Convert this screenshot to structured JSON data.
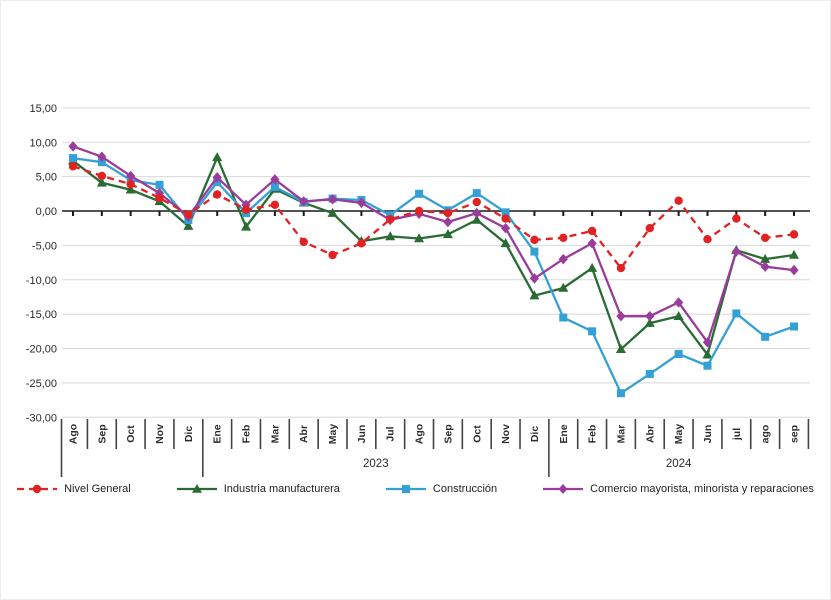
{
  "chart_data": {
    "type": "line",
    "title": "",
    "xlabel": "",
    "ylabel": "",
    "grid": true,
    "legend_position": "bottom",
    "ylim": [
      -30,
      15
    ],
    "y_step": 5,
    "y_ticks": [
      "15,00",
      "10,00",
      "5,00",
      "0,00",
      "-5,00",
      "-10,00",
      "-15,00",
      "-20,00",
      "-25,00",
      "-30,00"
    ],
    "x_categories": [
      "Ago",
      "Sep",
      "Oct",
      "Nov",
      "Dic",
      "Ene",
      "Feb",
      "Mar",
      "Abr",
      "May",
      "Jun",
      "Jul",
      "Ago",
      "Sep",
      "Oct",
      "Nov",
      "Dic",
      "Ene",
      "Feb",
      "Mar",
      "Abr",
      "May",
      "Jun",
      "jul",
      "ago",
      "sep"
    ],
    "year_groups": [
      {
        "label": "2023",
        "from": 5,
        "to": 16
      },
      {
        "label": "2024",
        "from": 17,
        "to": 25
      }
    ],
    "series": [
      {
        "name": "Nivel General",
        "color": "#e02222",
        "marker": "circle",
        "line_style": "dashed",
        "values": [
          6.5,
          5.1,
          3.9,
          1.9,
          -0.5,
          2.4,
          0.2,
          0.9,
          -4.5,
          -6.4,
          -4.7,
          -1.2,
          0.0,
          -0.3,
          1.3,
          -1.1,
          -4.2,
          -3.9,
          -2.9,
          -8.3,
          -2.5,
          1.5,
          -4.1,
          -1.1,
          -3.9,
          -3.4
        ]
      },
      {
        "name": "Industria manufacturera",
        "color": "#2a6b34",
        "marker": "triangle",
        "line_style": "solid",
        "values": [
          7.3,
          4.1,
          3.1,
          1.4,
          -2.2,
          7.8,
          -2.3,
          3.2,
          1.2,
          -0.3,
          -4.4,
          -3.7,
          -4.0,
          -3.4,
          -1.3,
          -4.7,
          -12.3,
          -11.2,
          -8.3,
          -20.1,
          -16.3,
          -15.3,
          -20.9,
          -5.7,
          -7.0,
          -6.4
        ]
      },
      {
        "name": "Construcción",
        "color": "#35a0d5",
        "marker": "square",
        "line_style": "solid",
        "values": [
          7.7,
          7.1,
          4.5,
          3.8,
          -1.3,
          4.2,
          -0.3,
          3.5,
          1.3,
          1.8,
          1.6,
          -0.6,
          2.5,
          0.1,
          2.6,
          -0.2,
          -5.9,
          -15.5,
          -17.5,
          -26.5,
          -23.7,
          -20.8,
          -22.5,
          -14.9,
          -18.3,
          -16.8
        ]
      },
      {
        "name": "Comercio mayorista, minorista y reparaciones",
        "color": "#9a3d9a",
        "marker": "diamond",
        "line_style": "solid",
        "values": [
          9.4,
          7.9,
          5.1,
          2.6,
          -0.8,
          4.9,
          0.9,
          4.6,
          1.4,
          1.7,
          1.2,
          -1.3,
          -0.4,
          -1.6,
          -0.3,
          -2.5,
          -9.8,
          -7.0,
          -4.7,
          -15.3,
          -15.3,
          -13.3,
          -19.1,
          -5.9,
          -8.1,
          -8.6
        ]
      }
    ],
    "axis_colors": {
      "gridline": "#d8d8d8",
      "zero_axis": "#1a1a1a",
      "tick_text": "#2b2b2b"
    }
  }
}
